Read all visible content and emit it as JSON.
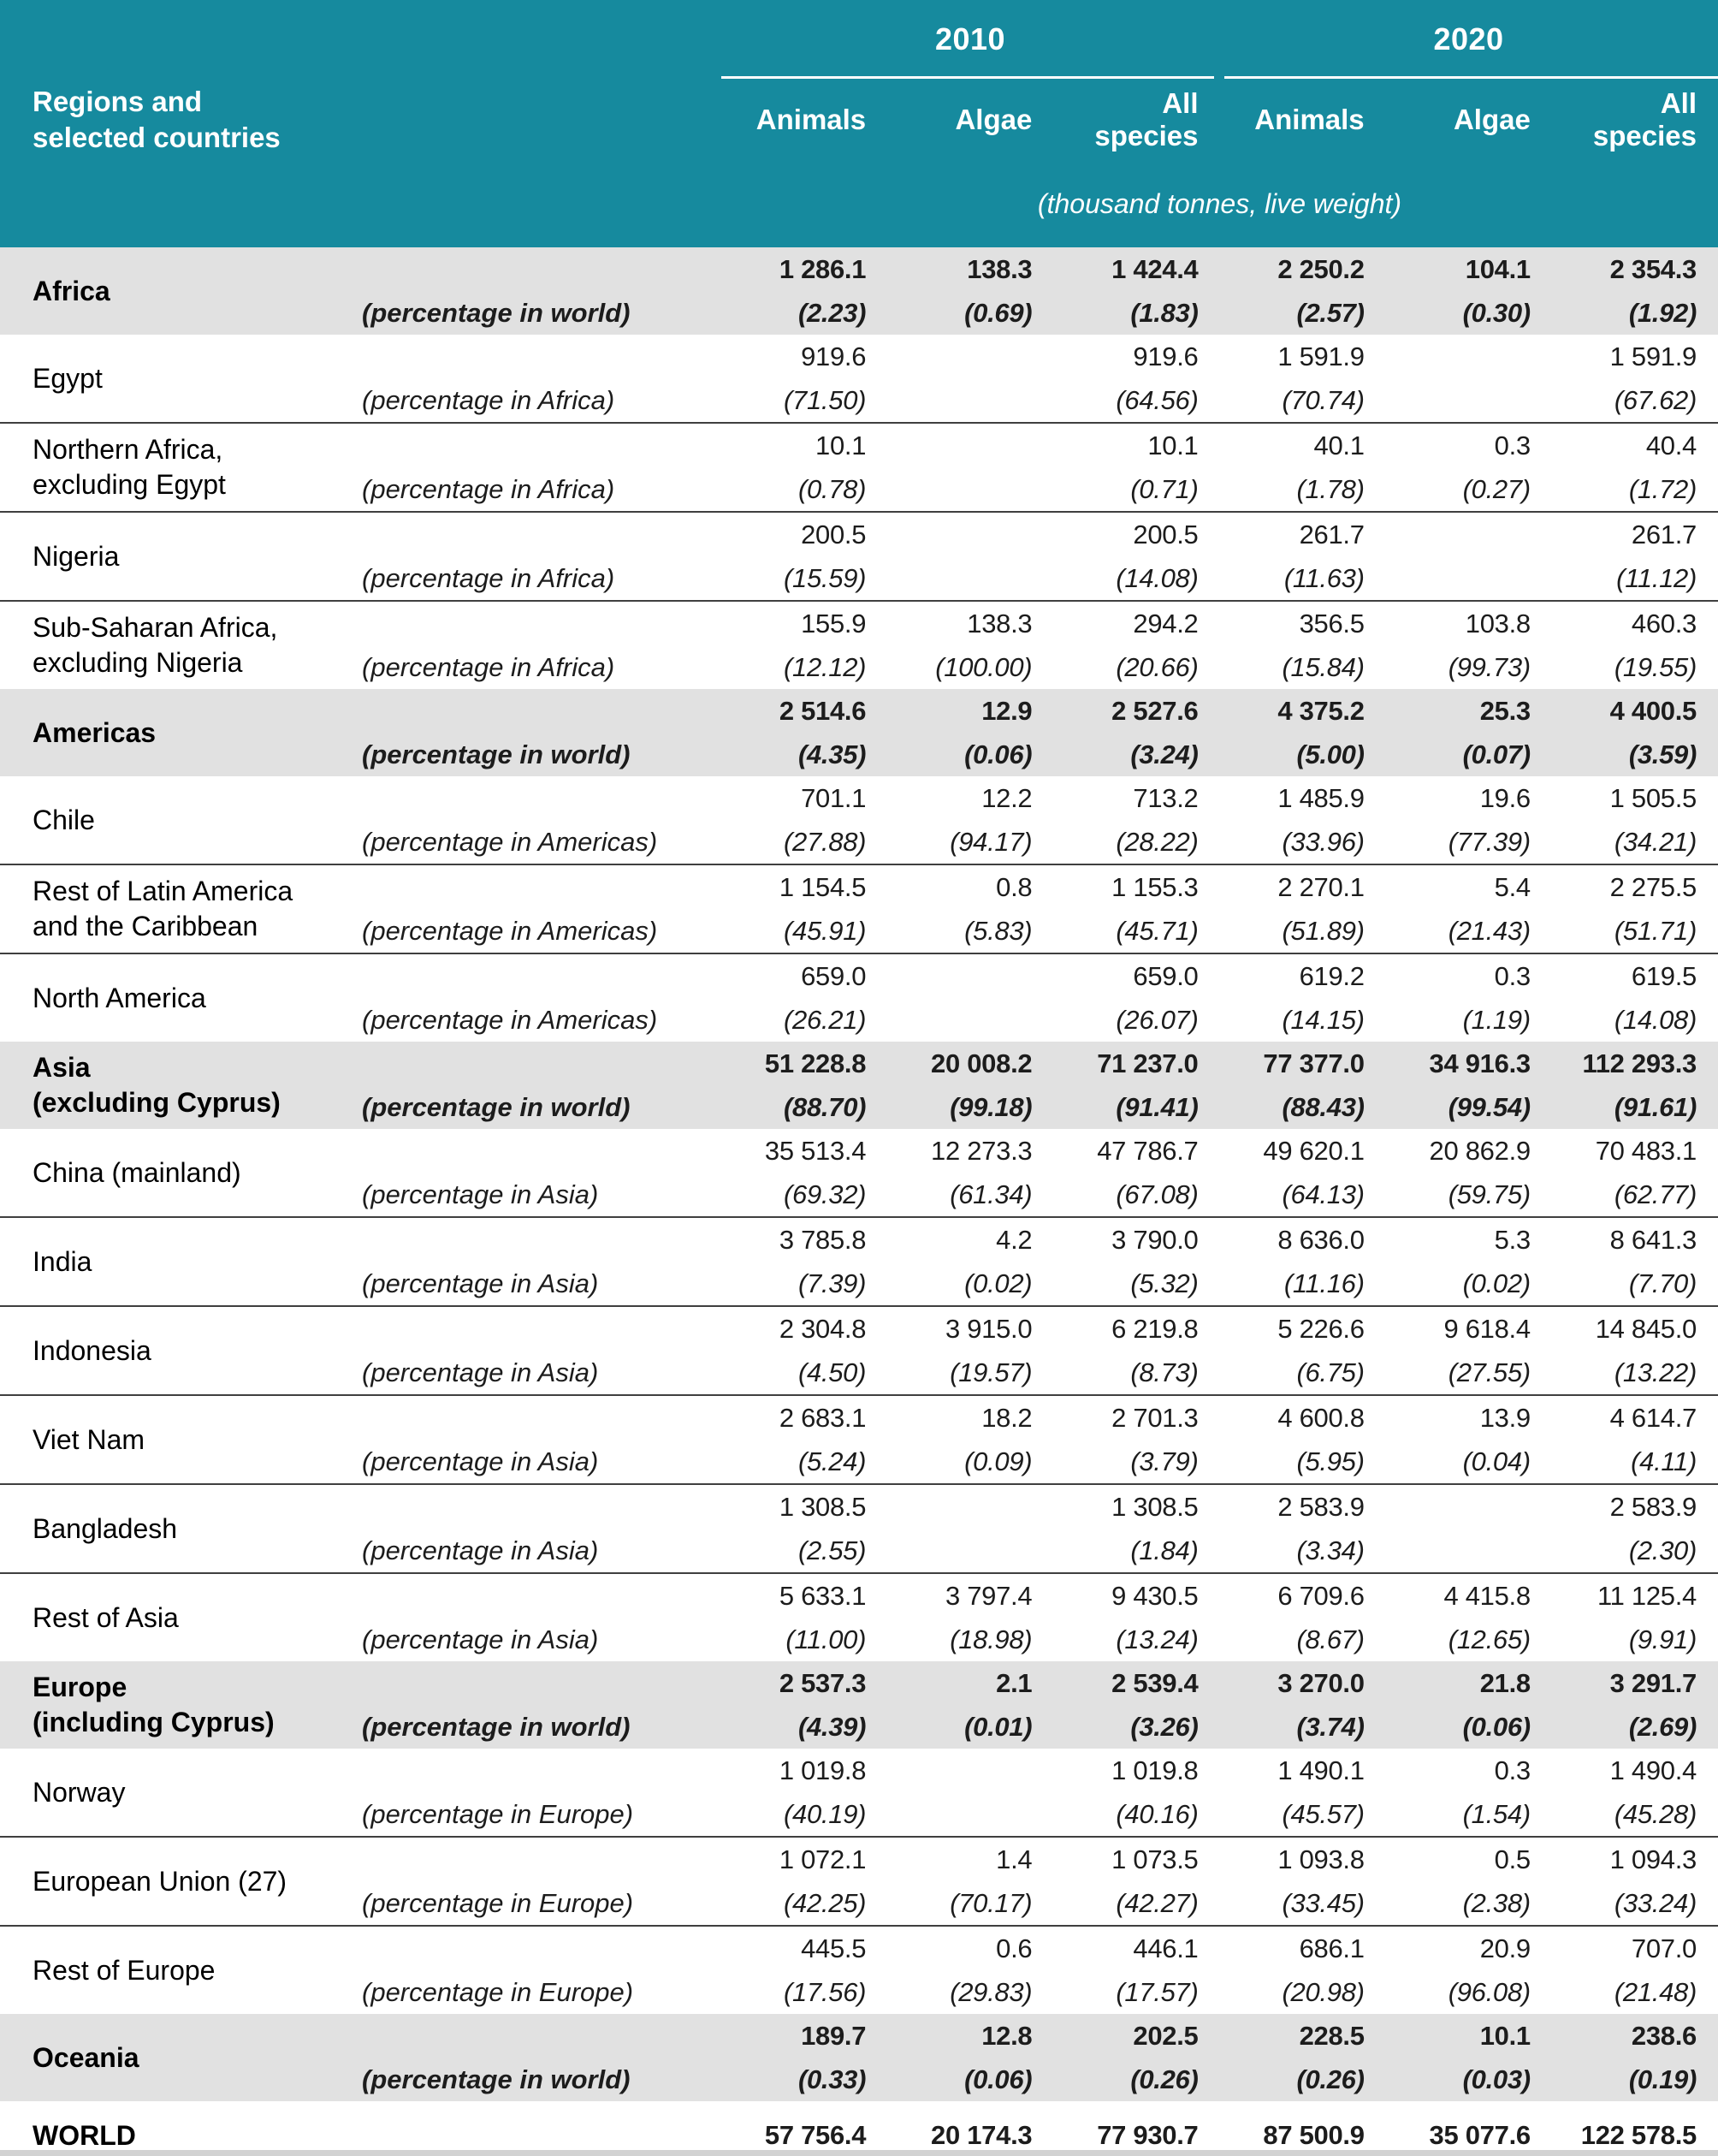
{
  "palette": {
    "header_teal": "#168A9E",
    "region_row_gray": "#E1E1E1",
    "separator_dark": "#3F3F3F",
    "bottom_rule_dark": "#1F1F1F",
    "bottom_strip_gray": "#D2D2D2",
    "header_text": "#FFFFFF",
    "body_text": "#1C1C1C"
  },
  "header": {
    "row_label": "Regions and\nselected countries",
    "year_groups": [
      {
        "label": "2010"
      },
      {
        "label": "2020"
      }
    ],
    "columns": [
      "Animals",
      "Algae",
      "All species",
      "Animals",
      "Algae",
      "All species"
    ],
    "unit_note": "(thousand tonnes, live weight)"
  },
  "rows": [
    {
      "name": "Africa",
      "type": "region",
      "sep": false,
      "pct_label": "(percentage in world)",
      "values": [
        "1 286.1",
        "138.3",
        "1 424.4",
        "2 250.2",
        "104.1",
        "2 354.3"
      ],
      "pcts": [
        "(2.23)",
        "(0.69)",
        "(1.83)",
        "(2.57)",
        "(0.30)",
        "(1.92)"
      ]
    },
    {
      "name": "Egypt",
      "type": "country",
      "sep": false,
      "pct_label": "(percentage in Africa)",
      "values": [
        "919.6",
        "",
        "919.6",
        "1 591.9",
        "",
        "1 591.9"
      ],
      "pcts": [
        "(71.50)",
        "",
        "(64.56)",
        "(70.74)",
        "",
        "(67.62)"
      ]
    },
    {
      "name": "Northern Africa,\nexcluding Egypt",
      "type": "country",
      "sep": true,
      "pct_label": "(percentage in Africa)",
      "values": [
        "10.1",
        "",
        "10.1",
        "40.1",
        "0.3",
        "40.4"
      ],
      "pcts": [
        "(0.78)",
        "",
        "(0.71)",
        "(1.78)",
        "(0.27)",
        "(1.72)"
      ]
    },
    {
      "name": "Nigeria",
      "type": "country",
      "sep": true,
      "pct_label": "(percentage in Africa)",
      "values": [
        "200.5",
        "",
        "200.5",
        "261.7",
        "",
        "261.7"
      ],
      "pcts": [
        "(15.59)",
        "",
        "(14.08)",
        "(11.63)",
        "",
        "(11.12)"
      ]
    },
    {
      "name": "Sub-Saharan Africa,\nexcluding Nigeria",
      "type": "country",
      "sep": true,
      "pct_label": "(percentage in Africa)",
      "values": [
        "155.9",
        "138.3",
        "294.2",
        "356.5",
        "103.8",
        "460.3"
      ],
      "pcts": [
        "(12.12)",
        "(100.00)",
        "(20.66)",
        "(15.84)",
        "(99.73)",
        "(19.55)"
      ]
    },
    {
      "name": "Americas",
      "type": "region",
      "sep": false,
      "pct_label": "(percentage in world)",
      "values": [
        "2 514.6",
        "12.9",
        "2 527.6",
        "4 375.2",
        "25.3",
        "4 400.5"
      ],
      "pcts": [
        "(4.35)",
        "(0.06)",
        "(3.24)",
        "(5.00)",
        "(0.07)",
        "(3.59)"
      ]
    },
    {
      "name": "Chile",
      "type": "country",
      "sep": false,
      "pct_label": "(percentage in Americas)",
      "values": [
        "701.1",
        "12.2",
        "713.2",
        "1 485.9",
        "19.6",
        "1 505.5"
      ],
      "pcts": [
        "(27.88)",
        "(94.17)",
        "(28.22)",
        "(33.96)",
        "(77.39)",
        "(34.21)"
      ]
    },
    {
      "name": "Rest of Latin America\nand the Caribbean",
      "type": "country",
      "sep": true,
      "pct_label": "(percentage in Americas)",
      "values": [
        "1 154.5",
        "0.8",
        "1 155.3",
        "2 270.1",
        "5.4",
        "2 275.5"
      ],
      "pcts": [
        "(45.91)",
        "(5.83)",
        "(45.71)",
        "(51.89)",
        "(21.43)",
        "(51.71)"
      ]
    },
    {
      "name": "North America",
      "type": "country",
      "sep": true,
      "pct_label": "(percentage in Americas)",
      "values": [
        "659.0",
        "",
        "659.0",
        "619.2",
        "0.3",
        "619.5"
      ],
      "pcts": [
        "(26.21)",
        "",
        "(26.07)",
        "(14.15)",
        "(1.19)",
        "(14.08)"
      ]
    },
    {
      "name": "Asia\n(excluding Cyprus)",
      "type": "region",
      "sep": false,
      "pct_label": "(percentage in world)",
      "values": [
        "51 228.8",
        "20 008.2",
        "71 237.0",
        "77 377.0",
        "34 916.3",
        "112 293.3"
      ],
      "pcts": [
        "(88.70)",
        "(99.18)",
        "(91.41)",
        "(88.43)",
        "(99.54)",
        "(91.61)"
      ]
    },
    {
      "name": "China (mainland)",
      "type": "country",
      "sep": false,
      "pct_label": "(percentage in Asia)",
      "values": [
        "35 513.4",
        "12 273.3",
        "47 786.7",
        "49 620.1",
        "20 862.9",
        "70 483.1"
      ],
      "pcts": [
        "(69.32)",
        "(61.34)",
        "(67.08)",
        "(64.13)",
        "(59.75)",
        "(62.77)"
      ]
    },
    {
      "name": "India",
      "type": "country",
      "sep": true,
      "pct_label": "(percentage in Asia)",
      "values": [
        "3 785.8",
        "4.2",
        "3 790.0",
        "8 636.0",
        "5.3",
        "8 641.3"
      ],
      "pcts": [
        "(7.39)",
        "(0.02)",
        "(5.32)",
        "(11.16)",
        "(0.02)",
        "(7.70)"
      ]
    },
    {
      "name": "Indonesia",
      "type": "country",
      "sep": true,
      "pct_label": "(percentage in Asia)",
      "values": [
        "2 304.8",
        "3 915.0",
        "6 219.8",
        "5 226.6",
        "9 618.4",
        "14 845.0"
      ],
      "pcts": [
        "(4.50)",
        "(19.57)",
        "(8.73)",
        "(6.75)",
        "(27.55)",
        "(13.22)"
      ]
    },
    {
      "name": "Viet Nam",
      "type": "country",
      "sep": true,
      "pct_label": "(percentage in Asia)",
      "values": [
        "2 683.1",
        "18.2",
        "2 701.3",
        "4 600.8",
        "13.9",
        "4 614.7"
      ],
      "pcts": [
        "(5.24)",
        "(0.09)",
        "(3.79)",
        "(5.95)",
        "(0.04)",
        "(4.11)"
      ]
    },
    {
      "name": "Bangladesh",
      "type": "country",
      "sep": true,
      "pct_label": "(percentage in Asia)",
      "values": [
        "1 308.5",
        "",
        "1 308.5",
        "2 583.9",
        "",
        "2 583.9"
      ],
      "pcts": [
        "(2.55)",
        "",
        "(1.84)",
        "(3.34)",
        "",
        "(2.30)"
      ]
    },
    {
      "name": "Rest of Asia",
      "type": "country",
      "sep": true,
      "pct_label": "(percentage in Asia)",
      "values": [
        "5 633.1",
        "3 797.4",
        "9 430.5",
        "6 709.6",
        "4 415.8",
        "11 125.4"
      ],
      "pcts": [
        "(11.00)",
        "(18.98)",
        "(13.24)",
        "(8.67)",
        "(12.65)",
        "(9.91)"
      ]
    },
    {
      "name": "Europe\n(including Cyprus)",
      "type": "region",
      "sep": false,
      "pct_label": "(percentage in world)",
      "values": [
        "2 537.3",
        "2.1",
        "2 539.4",
        "3 270.0",
        "21.8",
        "3 291.7"
      ],
      "pcts": [
        "(4.39)",
        "(0.01)",
        "(3.26)",
        "(3.74)",
        "(0.06)",
        "(2.69)"
      ]
    },
    {
      "name": "Norway",
      "type": "country",
      "sep": false,
      "pct_label": "(percentage in Europe)",
      "values": [
        "1 019.8",
        "",
        "1 019.8",
        "1 490.1",
        "0.3",
        "1 490.4"
      ],
      "pcts": [
        "(40.19)",
        "",
        "(40.16)",
        "(45.57)",
        "(1.54)",
        "(45.28)"
      ]
    },
    {
      "name": "European Union (27)",
      "type": "country",
      "sep": true,
      "pct_label": "(percentage in Europe)",
      "values": [
        "1 072.1",
        "1.4",
        "1 073.5",
        "1 093.8",
        "0.5",
        "1 094.3"
      ],
      "pcts": [
        "(42.25)",
        "(70.17)",
        "(42.27)",
        "(33.45)",
        "(2.38)",
        "(33.24)"
      ]
    },
    {
      "name": "Rest of Europe",
      "type": "country",
      "sep": true,
      "pct_label": "(percentage in Europe)",
      "values": [
        "445.5",
        "0.6",
        "446.1",
        "686.1",
        "20.9",
        "707.0"
      ],
      "pcts": [
        "(17.56)",
        "(29.83)",
        "(17.57)",
        "(20.98)",
        "(96.08)",
        "(21.48)"
      ]
    },
    {
      "name": "Oceania",
      "type": "region",
      "sep": false,
      "pct_label": "(percentage in world)",
      "values": [
        "189.7",
        "12.8",
        "202.5",
        "228.5",
        "10.1",
        "238.6"
      ],
      "pcts": [
        "(0.33)",
        "(0.06)",
        "(0.26)",
        "(0.26)",
        "(0.03)",
        "(0.19)"
      ]
    },
    {
      "name": "WORLD",
      "type": "world",
      "sep": false,
      "pct_label": "",
      "values": [
        "57 756.4",
        "20 174.3",
        "77 930.7",
        "87 500.9",
        "35 077.6",
        "122 578.5"
      ],
      "pcts": []
    }
  ]
}
